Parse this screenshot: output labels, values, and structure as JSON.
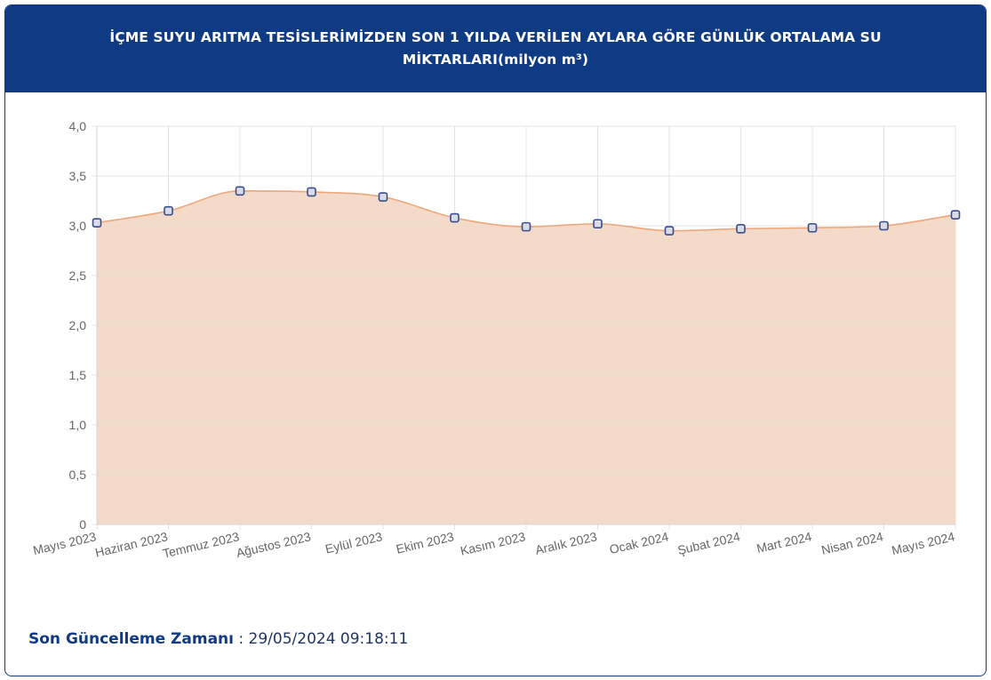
{
  "header": {
    "title": "İÇME SUYU ARITMA TESİSLERİMİZDEN SON 1 YILDA VERİLEN AYLARA GÖRE GÜNLÜK ORTALAMA SU MİKTARLARI(milyon m³)"
  },
  "chart_data": {
    "type": "area",
    "title": "İÇME SUYU ARITMA TESİSLERİMİZDEN SON 1 YILDA VERİLEN AYLARA GÖRE GÜNLÜK ORTALAMA SU MİKTARLARI(milyon m³)",
    "categories": [
      "Mayıs 2023",
      "Haziran 2023",
      "Temmuz 2023",
      "Ağustos 2023",
      "Eylül 2023",
      "Ekim 2023",
      "Kasım 2023",
      "Aralık 2023",
      "Ocak 2024",
      "Şubat 2024",
      "Mart 2024",
      "Nisan 2024",
      "Mayıs 2024"
    ],
    "series": [
      {
        "values": [
          3.03,
          3.15,
          3.35,
          3.34,
          3.29,
          3.08,
          2.99,
          3.02,
          2.95,
          2.97,
          2.98,
          3.0,
          3.11
        ]
      }
    ],
    "ylim": [
      0,
      4
    ],
    "yticks": [
      "0",
      "0,5",
      "1,0",
      "1,5",
      "2,0",
      "2,5",
      "3,0",
      "3,5",
      "4,0"
    ],
    "ytick_values": [
      0,
      0.5,
      1.0,
      1.5,
      2.0,
      2.5,
      3.0,
      3.5,
      4.0
    ],
    "grid": true,
    "legend": "none",
    "colors": {
      "fill": "#f2d8c6",
      "line": "#eca87c",
      "marker_fill": "#d9dbe6",
      "marker_stroke": "#3a4d8c",
      "grid": "#e4e4e4",
      "axis_text": "#666666"
    }
  },
  "footer": {
    "label": "Son Güncelleme Zamanı",
    "separator": " : ",
    "value": "29/05/2024 09:18:11"
  }
}
